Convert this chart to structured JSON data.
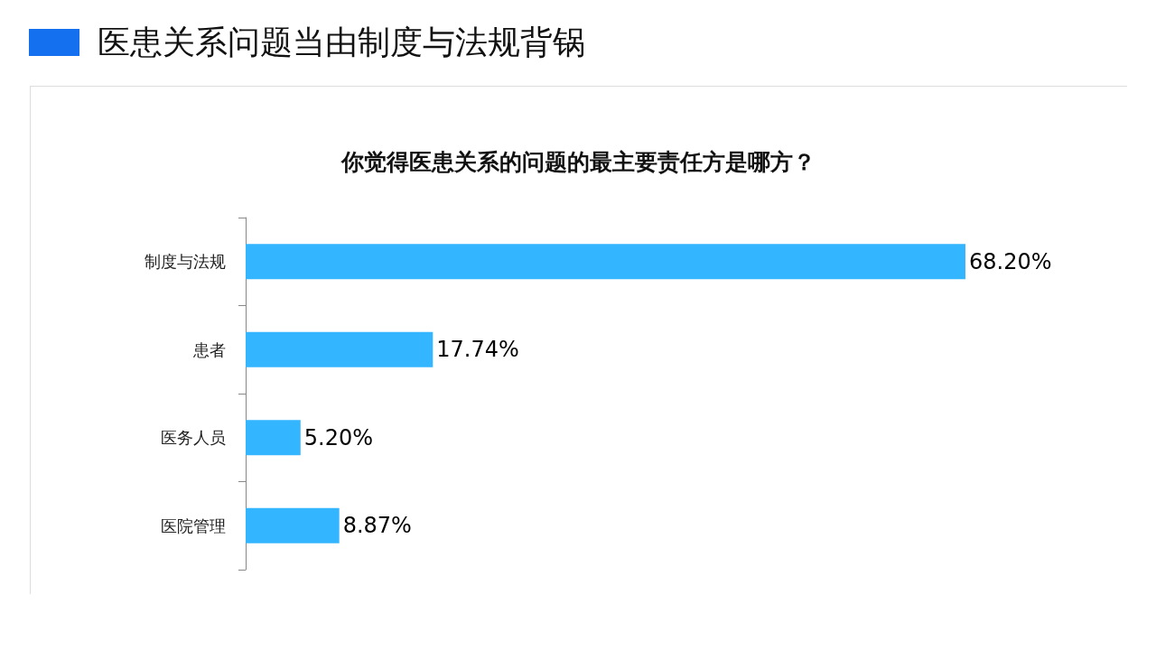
{
  "chart_data": {
    "type": "bar",
    "orientation": "horizontal",
    "title": "医患关系问题当由制度与法规背锅",
    "subtitle": "你觉得医患关系的问题的最主要责任方是哪方？",
    "categories": [
      "制度与法规",
      "患者",
      "医务人员",
      "医院管理"
    ],
    "values": [
      68.2,
      17.74,
      5.2,
      8.87
    ],
    "color": "#33b5ff",
    "value_labels": [
      "68.20%",
      "17.74%",
      "5.20%",
      "8.87%"
    ],
    "tick_labels": "y"
  }
}
